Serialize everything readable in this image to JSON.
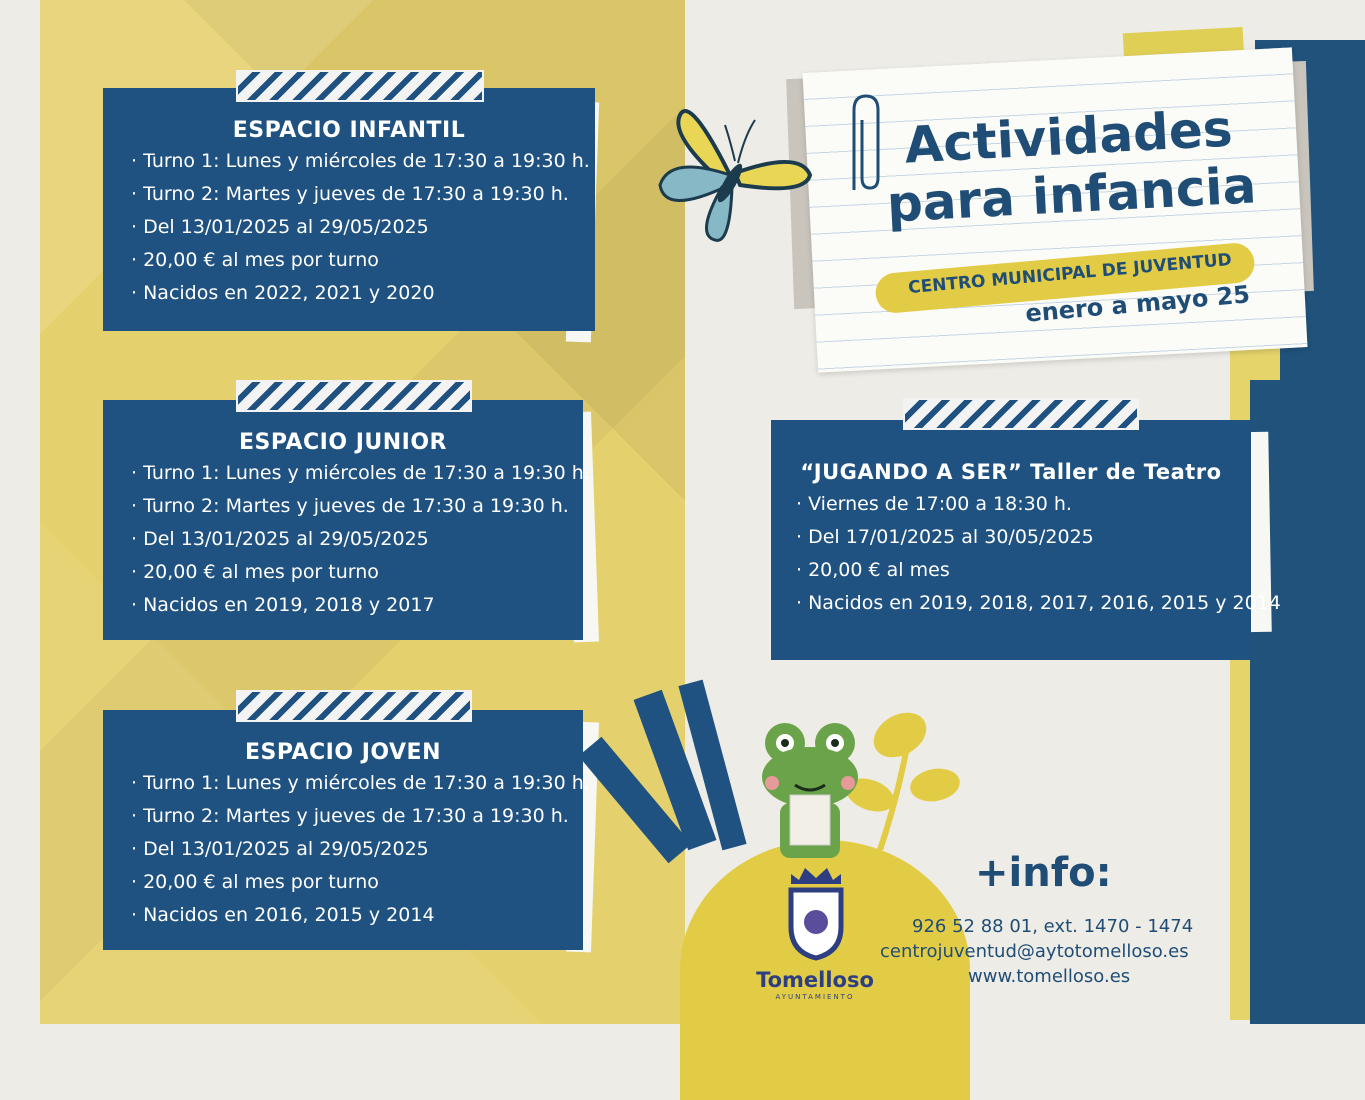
{
  "title": {
    "line1": "Actividades",
    "line2": "para infancia",
    "subtitle": "CENTRO MUNICIPAL DE JUVENTUD",
    "dates": "enero a mayo 25"
  },
  "cards": [
    {
      "title": "ESPACIO INFANTIL",
      "items": [
        "Turno 1: Lunes y miércoles de 17:30 a 19:30 h.",
        "Turno 2: Martes y jueves de 17:30 a 19:30 h.",
        "Del 13/01/2025 al 29/05/2025",
        "20,00 € al mes por turno",
        "Nacidos en 2022, 2021 y 2020"
      ]
    },
    {
      "title": "ESPACIO JUNIOR",
      "items": [
        "Turno 1: Lunes y miércoles de 17:30 a 19:30 h.",
        "Turno 2: Martes y jueves de 17:30 a 19:30 h.",
        "Del 13/01/2025 al 29/05/2025",
        "20,00 € al mes por turno",
        "Nacidos en 2019, 2018 y 2017"
      ]
    },
    {
      "title": "ESPACIO JOVEN",
      "items": [
        "Turno 1: Lunes y miércoles de 17:30 a 19:30 h.",
        "Turno 2: Martes y jueves de 17:30 a 19:30 h.",
        "Del 13/01/2025 al 29/05/2025",
        "20,00 € al mes por turno",
        "Nacidos en 2016, 2015 y 2014"
      ]
    },
    {
      "title": "“JUGANDO A SER” Taller de Teatro",
      "items": [
        "Viernes de 17:00 a 18:30 h.",
        "Del 17/01/2025 al 30/05/2025",
        "20,00 € al mes",
        "Nacidos en 2019, 2018, 2017, 2016, 2015 y 2014"
      ]
    }
  ],
  "info": {
    "heading": "+info:",
    "phone": "926 52 88 01, ext. 1470 - 1474",
    "email": "centrojuventud@aytotomelloso.es",
    "web": "www.tomelloso.es"
  },
  "logo": {
    "name": "Tomelloso",
    "tagline": "AYUNTAMIENTO"
  },
  "colors": {
    "navy": "#1f5281",
    "yellow": "#e5d06e",
    "paper": "#eeece6"
  }
}
